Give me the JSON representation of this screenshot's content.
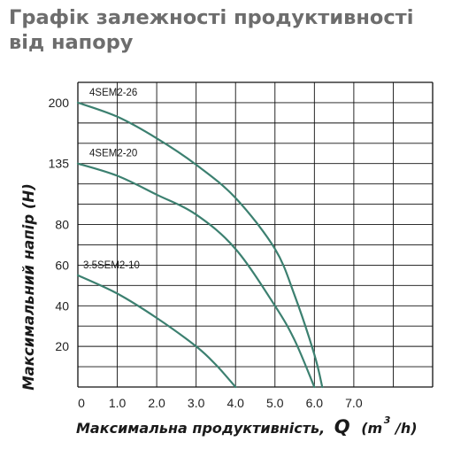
{
  "chart_data": {
    "type": "line",
    "title": "Графік залежності продуктивності від напору",
    "xlabel_main": "Максимальна продуктивність,",
    "xlabel_symbol": "Q",
    "xlabel_unit_open": "(m",
    "xlabel_unit_exp": "3",
    "xlabel_unit_close": "/h)",
    "ylabel": "Максимальний напір (Н)",
    "x_ticks": [
      "0",
      "1.0",
      "2.0",
      "3.0",
      "4.0",
      "5.0",
      "6.0",
      "7.0"
    ],
    "y_ticks": [
      {
        "label": "20",
        "value": 20
      },
      {
        "label": "40",
        "value": 40
      },
      {
        "label": "60",
        "value": 60
      },
      {
        "label": "80",
        "value": 80
      },
      {
        "label": "135",
        "value": 135
      },
      {
        "label": "200",
        "value": 200
      }
    ],
    "xlim": [
      0,
      9
    ],
    "grid": true,
    "series": [
      {
        "name": "4SEM2-26",
        "x": [
          0,
          1.0,
          2.0,
          3.0,
          4.0,
          5.0,
          5.5,
          6.0,
          6.2
        ],
        "y": [
          200,
          185,
          162,
          134,
          104,
          68,
          45,
          16,
          0
        ]
      },
      {
        "name": "4SEM2-20",
        "x": [
          0,
          1.0,
          2.0,
          3.0,
          4.0,
          5.0,
          5.5,
          6.0
        ],
        "y": [
          135,
          124,
          107,
          89,
          68,
          40,
          23,
          0
        ]
      },
      {
        "name": "3.5SEM2-10",
        "x": [
          0,
          1.0,
          2.0,
          3.0,
          3.5,
          4.0
        ],
        "y": [
          55,
          46,
          34,
          20,
          11,
          0
        ]
      }
    ]
  }
}
